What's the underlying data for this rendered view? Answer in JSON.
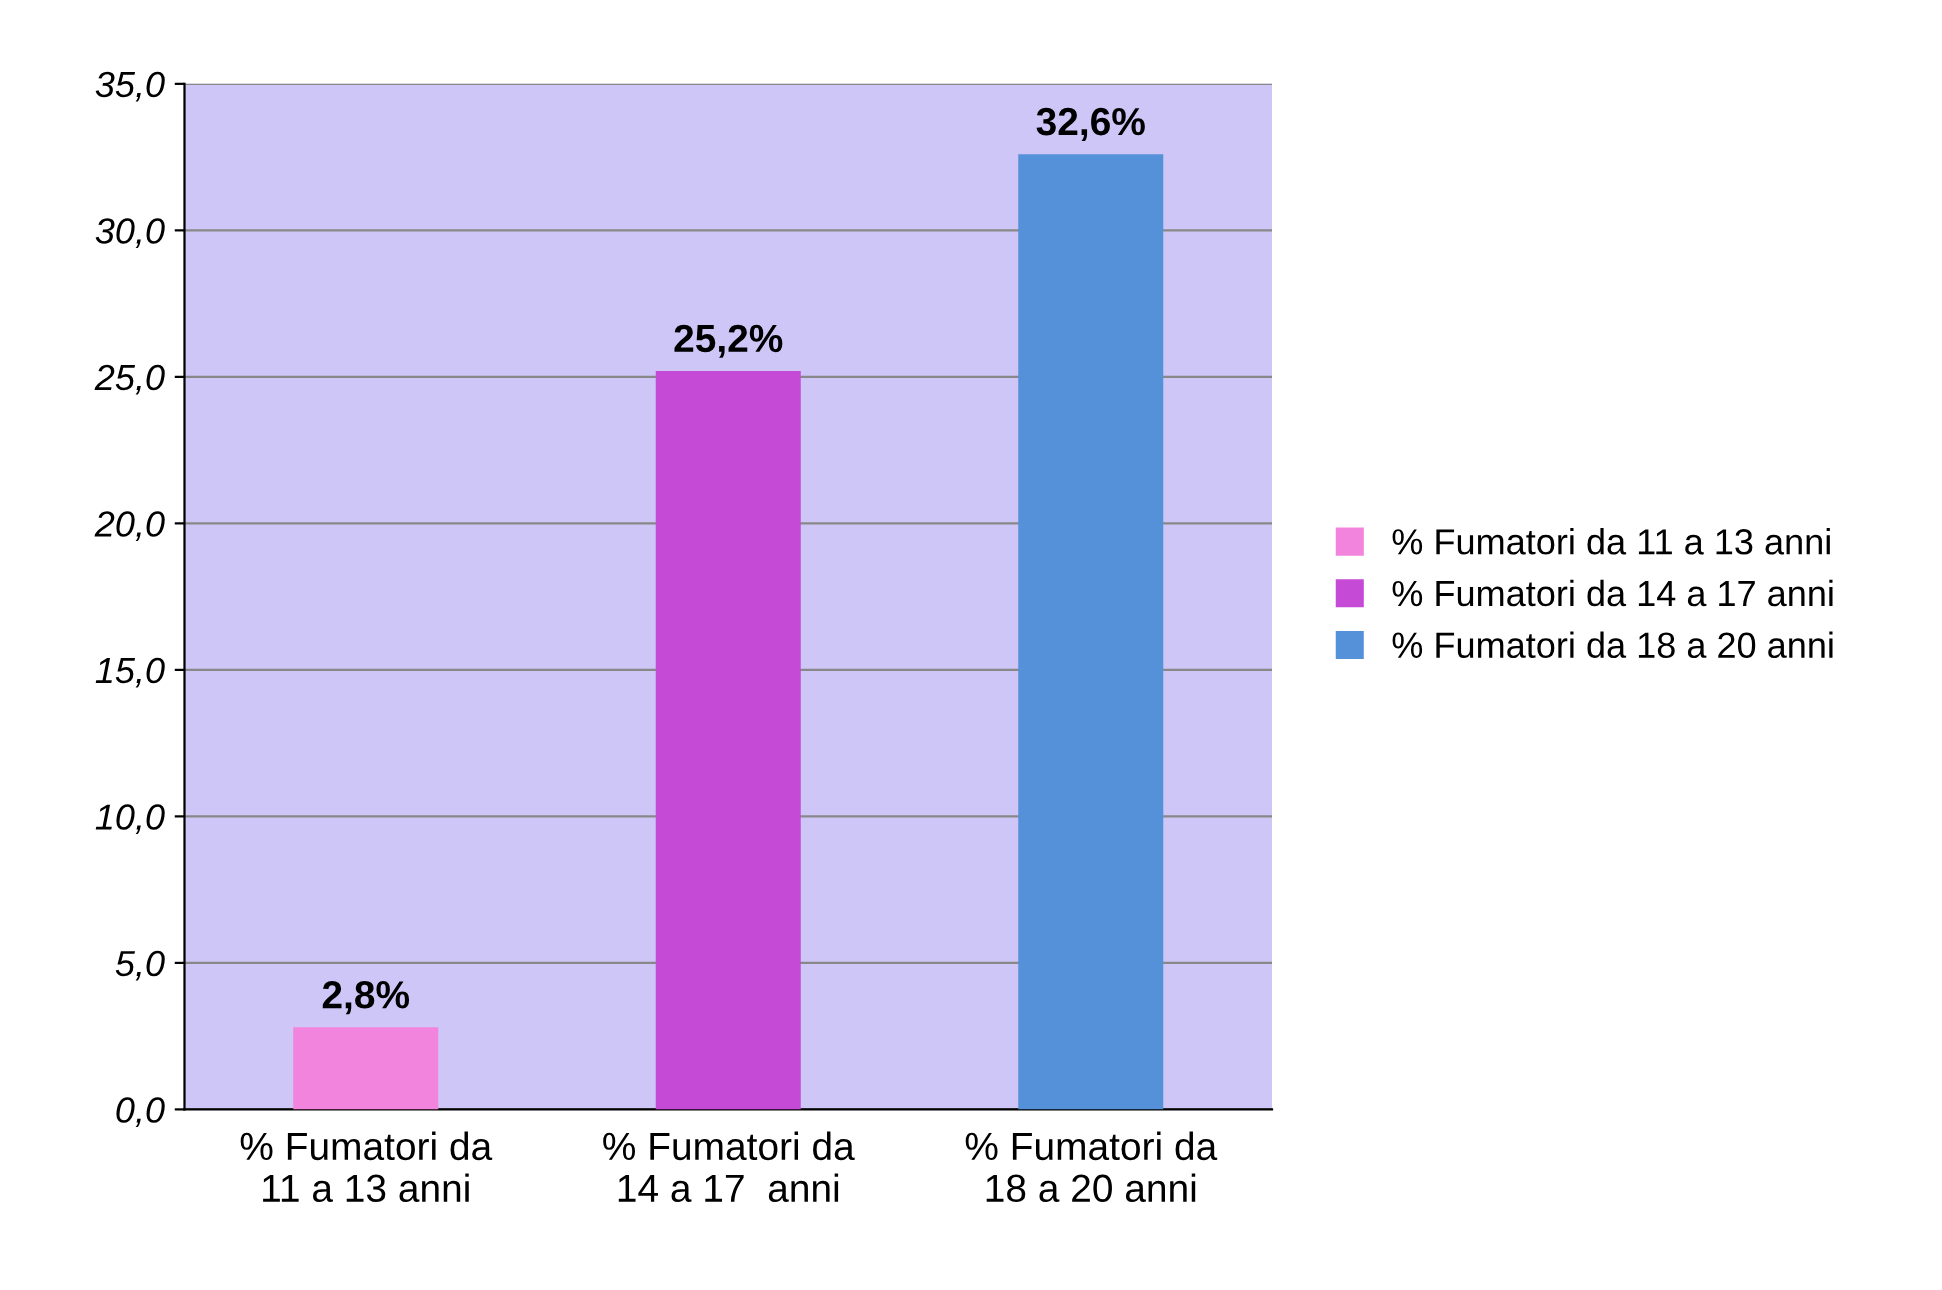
{
  "chart_data": {
    "type": "bar",
    "categories": [
      "% Fumatori da\n11 a 13 anni",
      "% Fumatori da\n14 a 17  anni",
      "% Fumatori da\n18 a 20 anni"
    ],
    "series": [
      {
        "name": "% Fumatori da 11 a 13 anni",
        "color": "#f384de",
        "values": [
          2.8,
          null,
          null
        ],
        "value_labels": [
          "2,8%",
          null,
          null
        ]
      },
      {
        "name": "% Fumatori da 14 a 17 anni",
        "color": "#c54ad6",
        "values": [
          null,
          25.2,
          null
        ],
        "value_labels": [
          null,
          "25,2%",
          null
        ]
      },
      {
        "name": "% Fumatori da 18 a 20 anni",
        "color": "#5591d8",
        "values": [
          null,
          null,
          32.6
        ],
        "value_labels": [
          null,
          null,
          "32,6%"
        ]
      }
    ],
    "ylim": [
      0,
      35
    ],
    "yticks": [
      {
        "value": 0,
        "label": "0,0"
      },
      {
        "value": 5,
        "label": "5,0"
      },
      {
        "value": 10,
        "label": "10,0"
      },
      {
        "value": 15,
        "label": "15,0"
      },
      {
        "value": 20,
        "label": "20,0"
      },
      {
        "value": 25,
        "label": "25,0"
      },
      {
        "value": 30,
        "label": "30,0"
      },
      {
        "value": 35,
        "label": "35,0"
      }
    ],
    "grid": "y",
    "legend": "right"
  }
}
